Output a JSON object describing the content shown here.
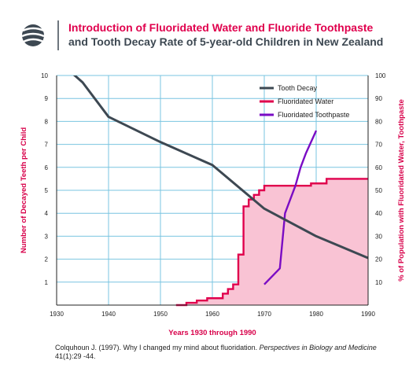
{
  "header": {
    "title_line1": "Introduction of Fluoridated Water and Fluoride Toothpaste",
    "title_line2": "and Tooth Decay Rate of 5-year-old Children in New Zealand"
  },
  "citation": {
    "text_before": "Colquhoun J. (1997). Why I changed my mind about fluoridation. ",
    "journal": "Perspectives in Biology and Medicine",
    "text_after": " 41(1):29 -44."
  },
  "colors": {
    "decay": "#3d4852",
    "water": "#e0004d",
    "water_fill": "#f9c3d4",
    "toothpaste": "#7a0cc4",
    "grid": "#79c4e0",
    "title_accent": "#e0004d",
    "axis_label": "#d8004a"
  },
  "chart_data": {
    "type": "line",
    "title": "Introduction of Fluoridated Water and Fluoride Toothpaste and Tooth Decay Rate of 5-year-old Children in New Zealand",
    "xlabel": "Years 1930 through 1990",
    "ylabel_left": "Number of Decayed Teeth per Child",
    "ylabel_right": "% of Population with Fluoridated Water, Toothpaste",
    "xlim": [
      1930,
      1990
    ],
    "ylim_left": [
      0,
      10
    ],
    "ylim_right": [
      0,
      100
    ],
    "x_ticks": [
      "1930",
      "1940",
      "1950",
      "1960",
      "1970",
      "1980",
      "1990"
    ],
    "y_left_ticks": [
      "1",
      "2",
      "3",
      "4",
      "5",
      "6",
      "7",
      "8",
      "9",
      "10"
    ],
    "y_right_ticks": [
      "10",
      "20",
      "30",
      "40",
      "50",
      "60",
      "70",
      "80",
      "90",
      "100"
    ],
    "grid": true,
    "legend_position": "top-right",
    "series": [
      {
        "name": "Tooth Decay",
        "axis": "left",
        "style": "line",
        "x": [
          1930,
          1935,
          1940,
          1950,
          1960,
          1970,
          1980,
          1990
        ],
        "y": [
          10.7,
          9.7,
          8.2,
          7.1,
          6.1,
          4.2,
          3.0,
          2.05
        ]
      },
      {
        "name": "Fluoridated Water",
        "axis": "right",
        "style": "step-area",
        "x": [
          1953,
          1955,
          1957,
          1959,
          1962,
          1963,
          1964,
          1965,
          1966,
          1967,
          1968,
          1969,
          1970,
          1979,
          1982,
          1990
        ],
        "y": [
          0,
          1,
          2,
          3,
          5,
          7,
          9,
          22,
          43,
          46,
          48,
          50,
          52,
          53,
          55,
          55
        ]
      },
      {
        "name": "Fluoridated Toothpaste",
        "axis": "right",
        "style": "line",
        "x": [
          1970,
          1973,
          1974,
          1976,
          1977,
          1978,
          1980
        ],
        "y": [
          9,
          16,
          40,
          52,
          60,
          66,
          76
        ]
      }
    ]
  }
}
